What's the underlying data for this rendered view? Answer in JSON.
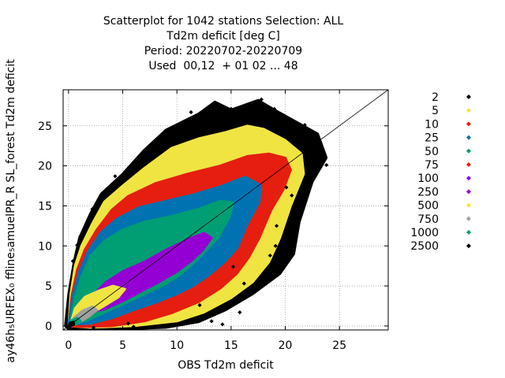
{
  "chart_data": {
    "type": "scatter",
    "title_lines": [
      "Scatterplot for 1042 stations Selection: ALL",
      "Td2m deficit [deg C]",
      "Period: 20220702-20220709",
      "Used  00,12  + 01 02 ... 48"
    ],
    "xlabel": "OBS Td2m deficit",
    "ylabel": "ay46h₅URFEX₀ ffline₅amuelPR_R SL_forest Td2m deficit",
    "xlim": [
      -0.5,
      29.5
    ],
    "ylim": [
      -0.5,
      29.5
    ],
    "x_ticks": [
      0,
      5,
      10,
      15,
      20,
      25
    ],
    "y_ticks": [
      0,
      5,
      10,
      15,
      20,
      25
    ],
    "grid": true,
    "legend_position": "outside-right",
    "legend": [
      {
        "label": "2",
        "color": "#000000"
      },
      {
        "label": "5",
        "color": "#f0e442"
      },
      {
        "label": "10",
        "color": "#e51e10"
      },
      {
        "label": "25",
        "color": "#0072b2"
      },
      {
        "label": "50",
        "color": "#009e73"
      },
      {
        "label": "75",
        "color": "#e51e10"
      },
      {
        "label": "100",
        "color": "#9400d3"
      },
      {
        "label": "250",
        "color": "#9400d3"
      },
      {
        "label": "500",
        "color": "#f0e442"
      },
      {
        "label": "750",
        "color": "#a0a0a0"
      },
      {
        "label": "1000",
        "color": "#009e73"
      },
      {
        "label": "2500",
        "color": "#000000"
      }
    ],
    "diagonal": {
      "from": [
        -0.5,
        -0.5
      ],
      "to": [
        29.5,
        29.5
      ],
      "color": "#000000"
    },
    "density_bands": [
      {
        "legend": "2",
        "color": "#000000",
        "polygon": [
          [
            -0.3,
            0
          ],
          [
            0,
            4
          ],
          [
            0.5,
            8
          ],
          [
            1,
            11
          ],
          [
            2,
            14
          ],
          [
            3,
            16.5
          ],
          [
            5,
            19
          ],
          [
            7,
            22
          ],
          [
            9,
            24.5
          ],
          [
            12,
            26.5
          ],
          [
            13.5,
            28
          ],
          [
            15,
            27
          ],
          [
            17.5,
            28.2
          ],
          [
            19,
            27
          ],
          [
            21,
            25.5
          ],
          [
            23,
            24
          ],
          [
            23.8,
            21
          ],
          [
            22.5,
            18
          ],
          [
            21.3,
            13
          ],
          [
            20.8,
            9
          ],
          [
            19.5,
            6.5
          ],
          [
            17,
            4
          ],
          [
            14.5,
            2
          ],
          [
            12,
            0.5
          ],
          [
            9,
            -0.2
          ],
          [
            5,
            -0.4
          ],
          [
            0,
            -0.4
          ]
        ]
      },
      {
        "legend": "5",
        "color": "#f0e442",
        "polygon": [
          [
            0,
            0
          ],
          [
            0.2,
            4
          ],
          [
            0.6,
            7.5
          ],
          [
            1.2,
            10
          ],
          [
            2.2,
            12.8
          ],
          [
            3.3,
            15.5
          ],
          [
            5,
            17.5
          ],
          [
            7,
            19.7
          ],
          [
            9.5,
            22.2
          ],
          [
            12,
            23.4
          ],
          [
            14.5,
            24.2
          ],
          [
            16.5,
            25
          ],
          [
            18,
            24.6
          ],
          [
            20,
            23.2
          ],
          [
            21.5,
            21.5
          ],
          [
            21.7,
            19
          ],
          [
            20.5,
            15
          ],
          [
            19.5,
            11
          ],
          [
            18.5,
            8
          ],
          [
            17,
            5.5
          ],
          [
            15,
            3.5
          ],
          [
            12.5,
            1.7
          ],
          [
            10,
            0.6
          ],
          [
            6,
            0
          ],
          [
            2,
            -0.2
          ]
        ]
      },
      {
        "legend": "10",
        "color": "#e51e10",
        "polygon": [
          [
            0,
            0
          ],
          [
            0.3,
            3.8
          ],
          [
            0.8,
            7
          ],
          [
            1.5,
            9.5
          ],
          [
            2.6,
            12
          ],
          [
            4,
            14.5
          ],
          [
            5.5,
            16.2
          ],
          [
            8,
            17.8
          ],
          [
            11,
            19
          ],
          [
            14,
            20
          ],
          [
            16.5,
            21.2
          ],
          [
            18.5,
            21.5
          ],
          [
            20,
            21
          ],
          [
            20.5,
            19.5
          ],
          [
            19.8,
            17
          ],
          [
            18.7,
            14.5
          ],
          [
            17.6,
            11
          ],
          [
            16.6,
            8.5
          ],
          [
            15.5,
            6.5
          ],
          [
            14,
            4.7
          ],
          [
            12,
            3
          ],
          [
            9.5,
            1.6
          ],
          [
            7,
            0.6
          ],
          [
            4,
            0
          ],
          [
            1.5,
            -0.1
          ]
        ]
      },
      {
        "legend": "25",
        "color": "#0072b2",
        "polygon": [
          [
            0,
            0.2
          ],
          [
            0.4,
            3.8
          ],
          [
            1,
            6.8
          ],
          [
            1.8,
            9.3
          ],
          [
            3,
            11.7
          ],
          [
            4.5,
            13.4
          ],
          [
            6.5,
            14.8
          ],
          [
            9,
            15.6
          ],
          [
            11.5,
            16.4
          ],
          [
            14,
            17.4
          ],
          [
            16.3,
            18.6
          ],
          [
            17.7,
            17.6
          ],
          [
            17.6,
            15.5
          ],
          [
            16.4,
            12.5
          ],
          [
            15.6,
            9.8
          ],
          [
            14.4,
            8
          ],
          [
            13,
            6.4
          ],
          [
            11.5,
            5
          ],
          [
            10,
            4
          ],
          [
            8.2,
            3
          ],
          [
            6,
            2
          ],
          [
            4,
            1
          ],
          [
            2,
            0.3
          ]
        ]
      },
      {
        "legend": "50",
        "color": "#009e73",
        "polygon": [
          [
            0.2,
            0.5
          ],
          [
            0.6,
            3.6
          ],
          [
            1.2,
            6.2
          ],
          [
            2.1,
            8.8
          ],
          [
            3.3,
            10.6
          ],
          [
            5,
            12
          ],
          [
            7,
            13
          ],
          [
            9.5,
            13.7
          ],
          [
            12,
            14.6
          ],
          [
            14,
            15.6
          ],
          [
            15.2,
            15.4
          ],
          [
            14.8,
            13.5
          ],
          [
            13.8,
            11
          ],
          [
            12.6,
            9.3
          ],
          [
            11.5,
            7.8
          ],
          [
            10.2,
            6.3
          ],
          [
            8.6,
            5
          ],
          [
            7,
            4
          ],
          [
            5.2,
            2.8
          ],
          [
            3.2,
            1.6
          ],
          [
            1.5,
            0.6
          ]
        ]
      },
      {
        "legend": "100",
        "color": "#9400d3",
        "polygon": [
          [
            1.2,
            1.5
          ],
          [
            2,
            3.5
          ],
          [
            3.4,
            5.4
          ],
          [
            5,
            6.8
          ],
          [
            7,
            8
          ],
          [
            9,
            9.5
          ],
          [
            11,
            10.8
          ],
          [
            12.5,
            11.6
          ],
          [
            13.2,
            11
          ],
          [
            12.4,
            9.5
          ],
          [
            11.3,
            8.1
          ],
          [
            10,
            6.8
          ],
          [
            8.5,
            5.6
          ],
          [
            6.8,
            4.4
          ],
          [
            5,
            3.1
          ],
          [
            3.3,
            2.1
          ]
        ]
      },
      {
        "legend": "500",
        "color": "#f0e442",
        "polygon": [
          [
            0.2,
            0.3
          ],
          [
            0.6,
            2.2
          ],
          [
            1.5,
            3.6
          ],
          [
            2.8,
            4.4
          ],
          [
            4.1,
            5
          ],
          [
            5.2,
            4.6
          ],
          [
            4.6,
            3.6
          ],
          [
            3.4,
            2.6
          ],
          [
            2,
            1.5
          ],
          [
            0.8,
            0.5
          ]
        ]
      },
      {
        "legend": "750",
        "color": "#a0a0a0",
        "polygon": [
          [
            0.1,
            0.1
          ],
          [
            0.5,
            1
          ],
          [
            1.3,
            1.9
          ],
          [
            2.2,
            2.4
          ],
          [
            2.6,
            2
          ],
          [
            1.9,
            1.2
          ],
          [
            0.9,
            0.4
          ]
        ]
      },
      {
        "legend": "1000",
        "color": "#009e73",
        "polygon": [
          [
            0.1,
            0.1
          ],
          [
            0.3,
            0.7
          ],
          [
            0.8,
            1
          ],
          [
            1.1,
            0.6
          ],
          [
            0.6,
            0.2
          ]
        ]
      },
      {
        "legend": "2500",
        "color": "#000000",
        "polygon": [
          [
            0,
            0
          ],
          [
            0.15,
            0.4
          ],
          [
            0.45,
            0.5
          ],
          [
            0.5,
            0.2
          ],
          [
            0.2,
            0
          ]
        ]
      }
    ],
    "outliers": [
      [
        13.5,
        27.8
      ],
      [
        15,
        27.1
      ],
      [
        17.8,
        28.3
      ],
      [
        19,
        27.1
      ],
      [
        20.1,
        23.6
      ],
      [
        20.5,
        24.3
      ],
      [
        21.2,
        24.4
      ],
      [
        21.3,
        23.8
      ],
      [
        23,
        21.7
      ],
      [
        23.8,
        20.1
      ],
      [
        22.1,
        18.8
      ],
      [
        20.1,
        17.3
      ],
      [
        19.2,
        12.5
      ],
      [
        20.6,
        16.3
      ],
      [
        20.7,
        10.7
      ],
      [
        19.1,
        10
      ],
      [
        19,
        7.5
      ],
      [
        18.3,
        6.2
      ],
      [
        17,
        4.2
      ],
      [
        15.2,
        7.4
      ],
      [
        14.2,
        0.2
      ],
      [
        15.8,
        1.7
      ],
      [
        13.2,
        0.6
      ],
      [
        10.5,
        0.2
      ],
      [
        9,
        0
      ],
      [
        6,
        -0.1
      ],
      [
        3.4,
        16.6
      ],
      [
        4.3,
        18.7
      ],
      [
        2.2,
        14.6
      ],
      [
        0.4,
        8.1
      ],
      [
        1.1,
        11.2
      ],
      [
        8.2,
        21.4
      ],
      [
        9.3,
        24.2
      ],
      [
        6,
        20.3
      ],
      [
        7.5,
        22.1
      ],
      [
        11.3,
        26.7
      ],
      [
        12.6,
        26.6
      ],
      [
        16.6,
        27.2
      ],
      [
        21.8,
        25.1
      ],
      [
        19.5,
        25.4
      ],
      [
        14,
        26.1
      ],
      [
        17.4,
        26.5
      ],
      [
        22.6,
        22.2
      ],
      [
        21.2,
        13.8
      ],
      [
        16.2,
        5.3
      ],
      [
        18.6,
        8.8
      ],
      [
        12.1,
        2.6
      ],
      [
        5.5,
        0.3
      ],
      [
        2.3,
        -0.2
      ],
      [
        0.8,
        10.1
      ]
    ]
  }
}
